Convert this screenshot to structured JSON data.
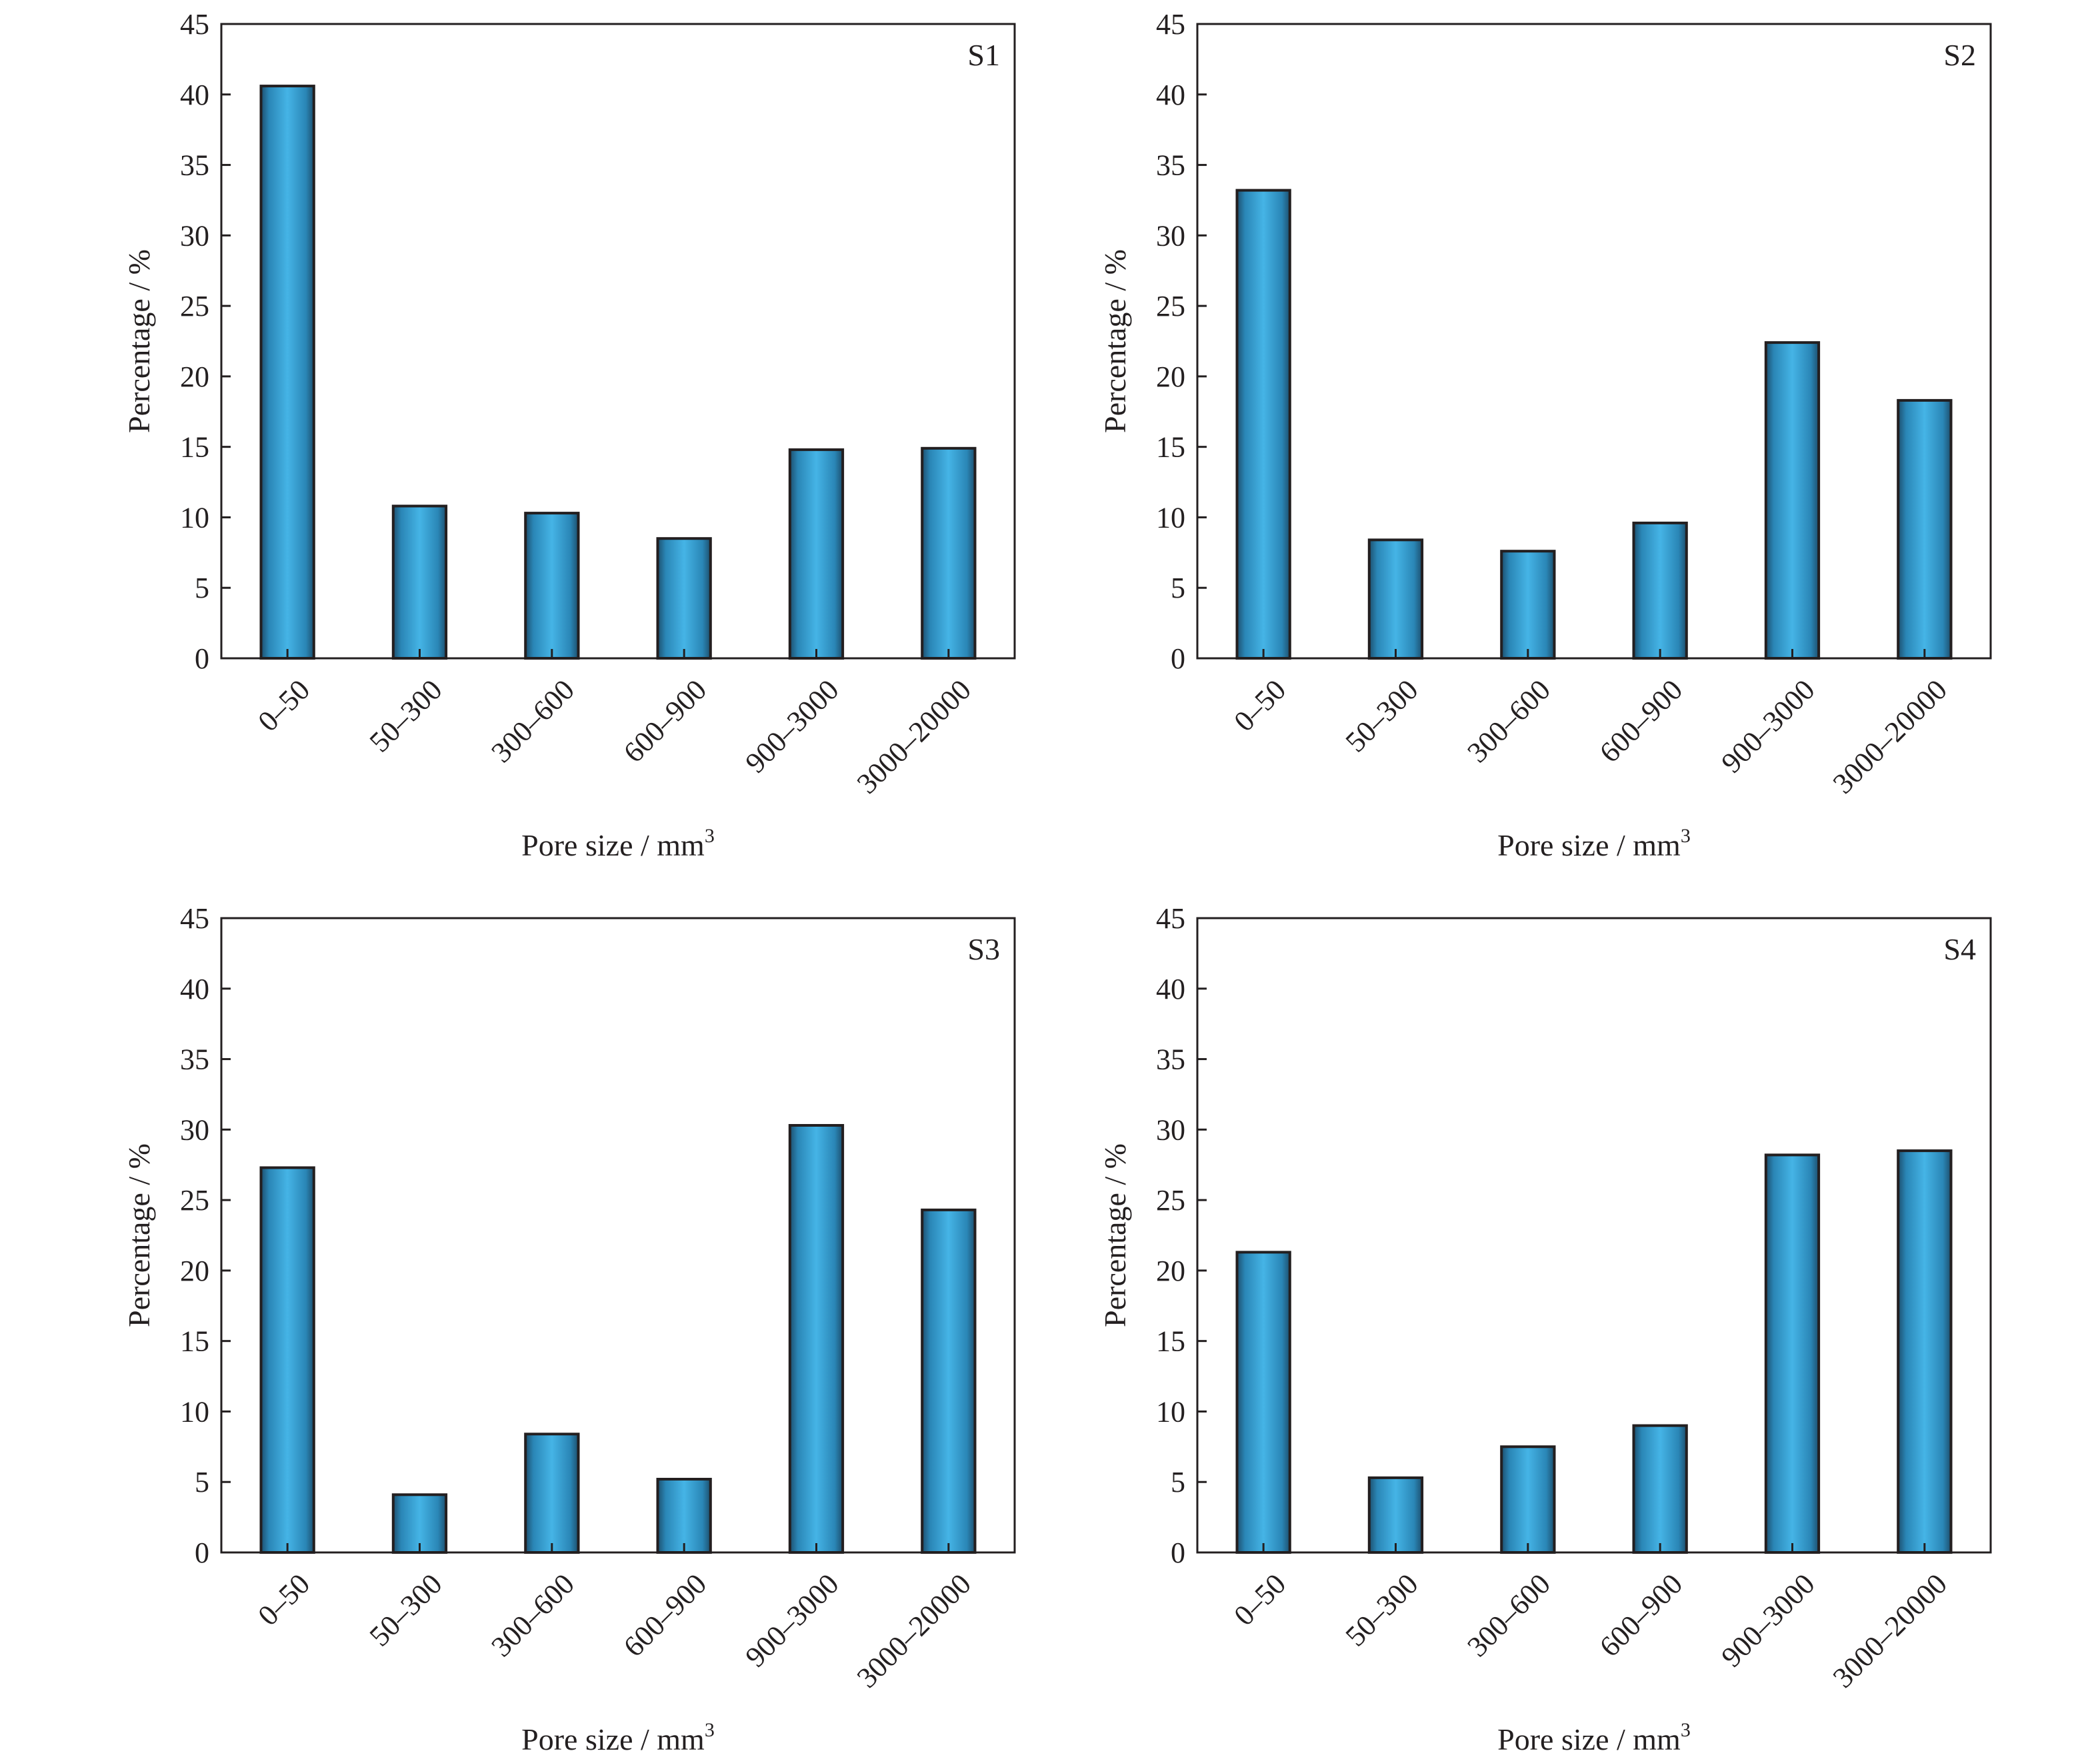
{
  "chart_data": [
    {
      "type": "bar",
      "panel_label": "S1",
      "categories": [
        "0–50",
        "50–300",
        "300–600",
        "600–900",
        "900–3000",
        "3000–20000"
      ],
      "values": [
        40.6,
        10.8,
        10.3,
        8.5,
        14.8,
        14.9
      ],
      "xlabel": "Pore size / mm",
      "xlabel_sup": "3",
      "ylabel": "Percentage / %",
      "ylim": [
        0,
        45
      ],
      "yticks": [
        0,
        5,
        10,
        15,
        20,
        25,
        30,
        35,
        40,
        45
      ],
      "grid": false,
      "bar_color": "#3aa8d8",
      "edge_color": "#231f20"
    },
    {
      "type": "bar",
      "panel_label": "S2",
      "categories": [
        "0–50",
        "50–300",
        "300–600",
        "600–900",
        "900–3000",
        "3000–20000"
      ],
      "values": [
        33.2,
        8.4,
        7.6,
        9.6,
        22.4,
        18.3
      ],
      "xlabel": "Pore size / mm",
      "xlabel_sup": "3",
      "ylabel": "Percentage / %",
      "ylim": [
        0,
        45
      ],
      "yticks": [
        0,
        5,
        10,
        15,
        20,
        25,
        30,
        35,
        40,
        45
      ],
      "grid": false,
      "bar_color": "#3aa8d8",
      "edge_color": "#231f20"
    },
    {
      "type": "bar",
      "panel_label": "S3",
      "categories": [
        "0–50",
        "50–300",
        "300–600",
        "600–900",
        "900–3000",
        "3000–20000"
      ],
      "values": [
        27.3,
        4.1,
        8.4,
        5.2,
        30.3,
        24.3
      ],
      "xlabel": "Pore size / mm",
      "xlabel_sup": "3",
      "ylabel": "Percentage / %",
      "ylim": [
        0,
        45
      ],
      "yticks": [
        0,
        5,
        10,
        15,
        20,
        25,
        30,
        35,
        40,
        45
      ],
      "grid": false,
      "bar_color": "#3aa8d8",
      "edge_color": "#231f20"
    },
    {
      "type": "bar",
      "panel_label": "S4",
      "categories": [
        "0–50",
        "50–300",
        "300–600",
        "600–900",
        "900–3000",
        "3000–20000"
      ],
      "values": [
        21.3,
        5.3,
        7.5,
        9.0,
        28.2,
        28.5
      ],
      "xlabel": "Pore size / mm",
      "xlabel_sup": "3",
      "ylabel": "Percentage / %",
      "ylim": [
        0,
        45
      ],
      "yticks": [
        0,
        5,
        10,
        15,
        20,
        25,
        30,
        35,
        40,
        45
      ],
      "grid": false,
      "bar_color": "#3aa8d8",
      "edge_color": "#231f20"
    }
  ]
}
